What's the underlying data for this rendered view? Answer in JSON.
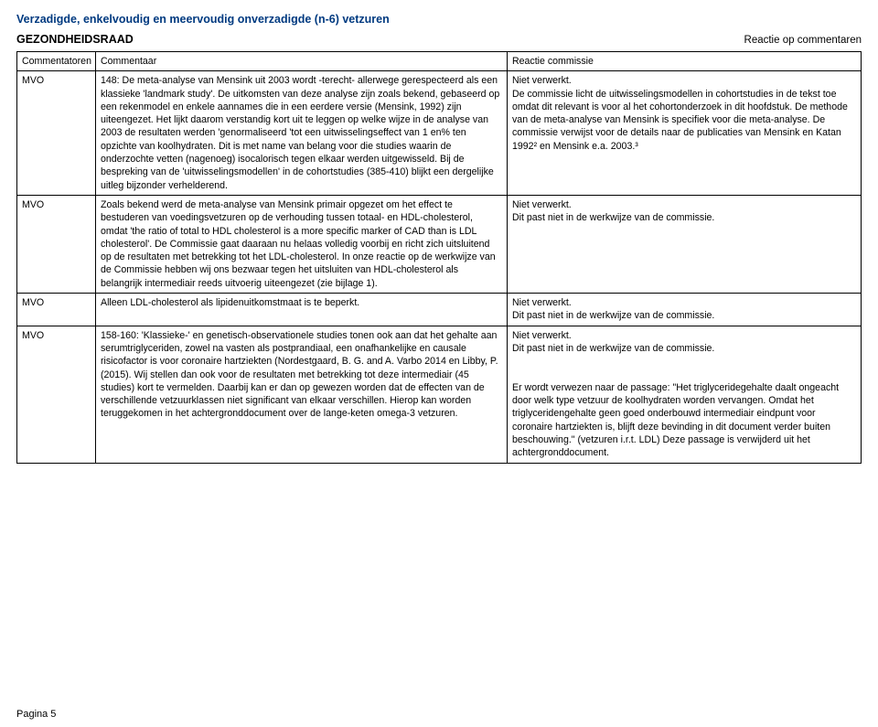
{
  "page": {
    "title": "Verzadigde, enkelvoudig en meervoudig onverzadigde (n-6) vetzuren",
    "org": "GEZONDHEIDSRAAD",
    "subtitle": "Reactie op commentaren",
    "footer": "Pagina 5"
  },
  "table": {
    "headers": {
      "c1": "Commentatoren",
      "c2": "Commentaar",
      "c3": "Reactie commissie"
    },
    "rows": [
      {
        "c1": "MVO",
        "c2": "148: De meta-analyse van Mensink uit 2003 wordt -terecht- allerwege gerespecteerd als een klassieke 'landmark study'. De uitkomsten van deze analyse zijn zoals bekend, gebaseerd op een rekenmodel en enkele aannames die in een eerdere versie (Mensink, 1992) zijn uiteengezet. Het lijkt daarom verstandig kort uit te leggen op welke wijze in de analyse van 2003 de resultaten werden 'genormaliseerd 'tot een uitwisselingseffect van 1 en% ten opzichte van koolhydraten. Dit is met name van belang voor die studies waarin de onderzochte vetten (nagenoeg) isocalorisch tegen elkaar werden uitgewisseld. Bij de bespreking van de 'uitwisselingsmodellen' in de cohortstudies (385-410) blijkt een dergelijke uitleg bijzonder verhelderend.",
        "c3": "Niet verwerkt.\nDe commissie licht de uitwisselingsmodellen in cohortstudies in de tekst toe omdat dit relevant is voor al het cohortonderzoek in dit hoofdstuk. De methode van de meta-analyse van Mensink is specifiek voor die meta-analyse. De commissie verwijst voor de details naar de publicaties van Mensink en Katan 1992² en Mensink e.a. 2003.³"
      },
      {
        "c1": "MVO",
        "c2": "Zoals bekend werd de meta-analyse van Mensink primair opgezet om het effect te bestuderen van voedingsvetzuren op de verhouding tussen totaal- en HDL-cholesterol, omdat 'the ratio of total to HDL cholesterol is a more specific marker of CAD than is LDL cholesterol'. De Commissie gaat daaraan nu helaas volledig voorbij en richt zich uitsluitend op de resultaten met betrekking tot het LDL-cholesterol. In onze reactie op de werkwijze van de Commissie hebben wij ons bezwaar tegen het uitsluiten van HDL-cholesterol als belangrijk intermediair reeds uitvoerig uiteengezet (zie bijlage 1).",
        "c3": "Niet verwerkt.\nDit past niet in de werkwijze van de commissie."
      },
      {
        "c1": "MVO",
        "c2": "Alleen LDL-cholesterol als lipidenuitkomstmaat is te beperkt.",
        "c3": "Niet verwerkt.\nDit past niet in de werkwijze van de commissie."
      },
      {
        "c1": "MVO",
        "c2": "158-160: 'Klassieke-' en genetisch-observationele studies tonen ook aan dat het gehalte aan serumtriglyceriden, zowel na vasten als postprandiaal, een onafhankelijke en causale risicofactor is voor coronaire hartziekten (Nordestgaard, B. G. and A. Varbo 2014 en Libby, P. (2015). Wij stellen dan ook voor de resultaten met betrekking tot deze intermediair (45 studies) kort te vermelden. Daarbij kan er dan op gewezen worden dat de effecten van de verschillende vetzuurklassen niet significant van elkaar verschillen. Hierop kan worden teruggekomen in het achtergronddocument over de lange-keten omega-3 vetzuren.",
        "c3": "Niet verwerkt.\nDit past niet in de werkwijze van de commissie.\n\nEr wordt verwezen naar de passage: \"Het triglyceridegehalte daalt ongeacht door welk type vetzuur de koolhydraten worden vervangen. Omdat het triglyceridengehalte geen goed onderbouwd intermediair eindpunt voor coronaire hartziekten is, blijft deze bevinding in dit document verder buiten beschouwing.\" (vetzuren i.r.t. LDL) Deze passage is verwijderd uit het achtergronddocument."
      }
    ]
  }
}
